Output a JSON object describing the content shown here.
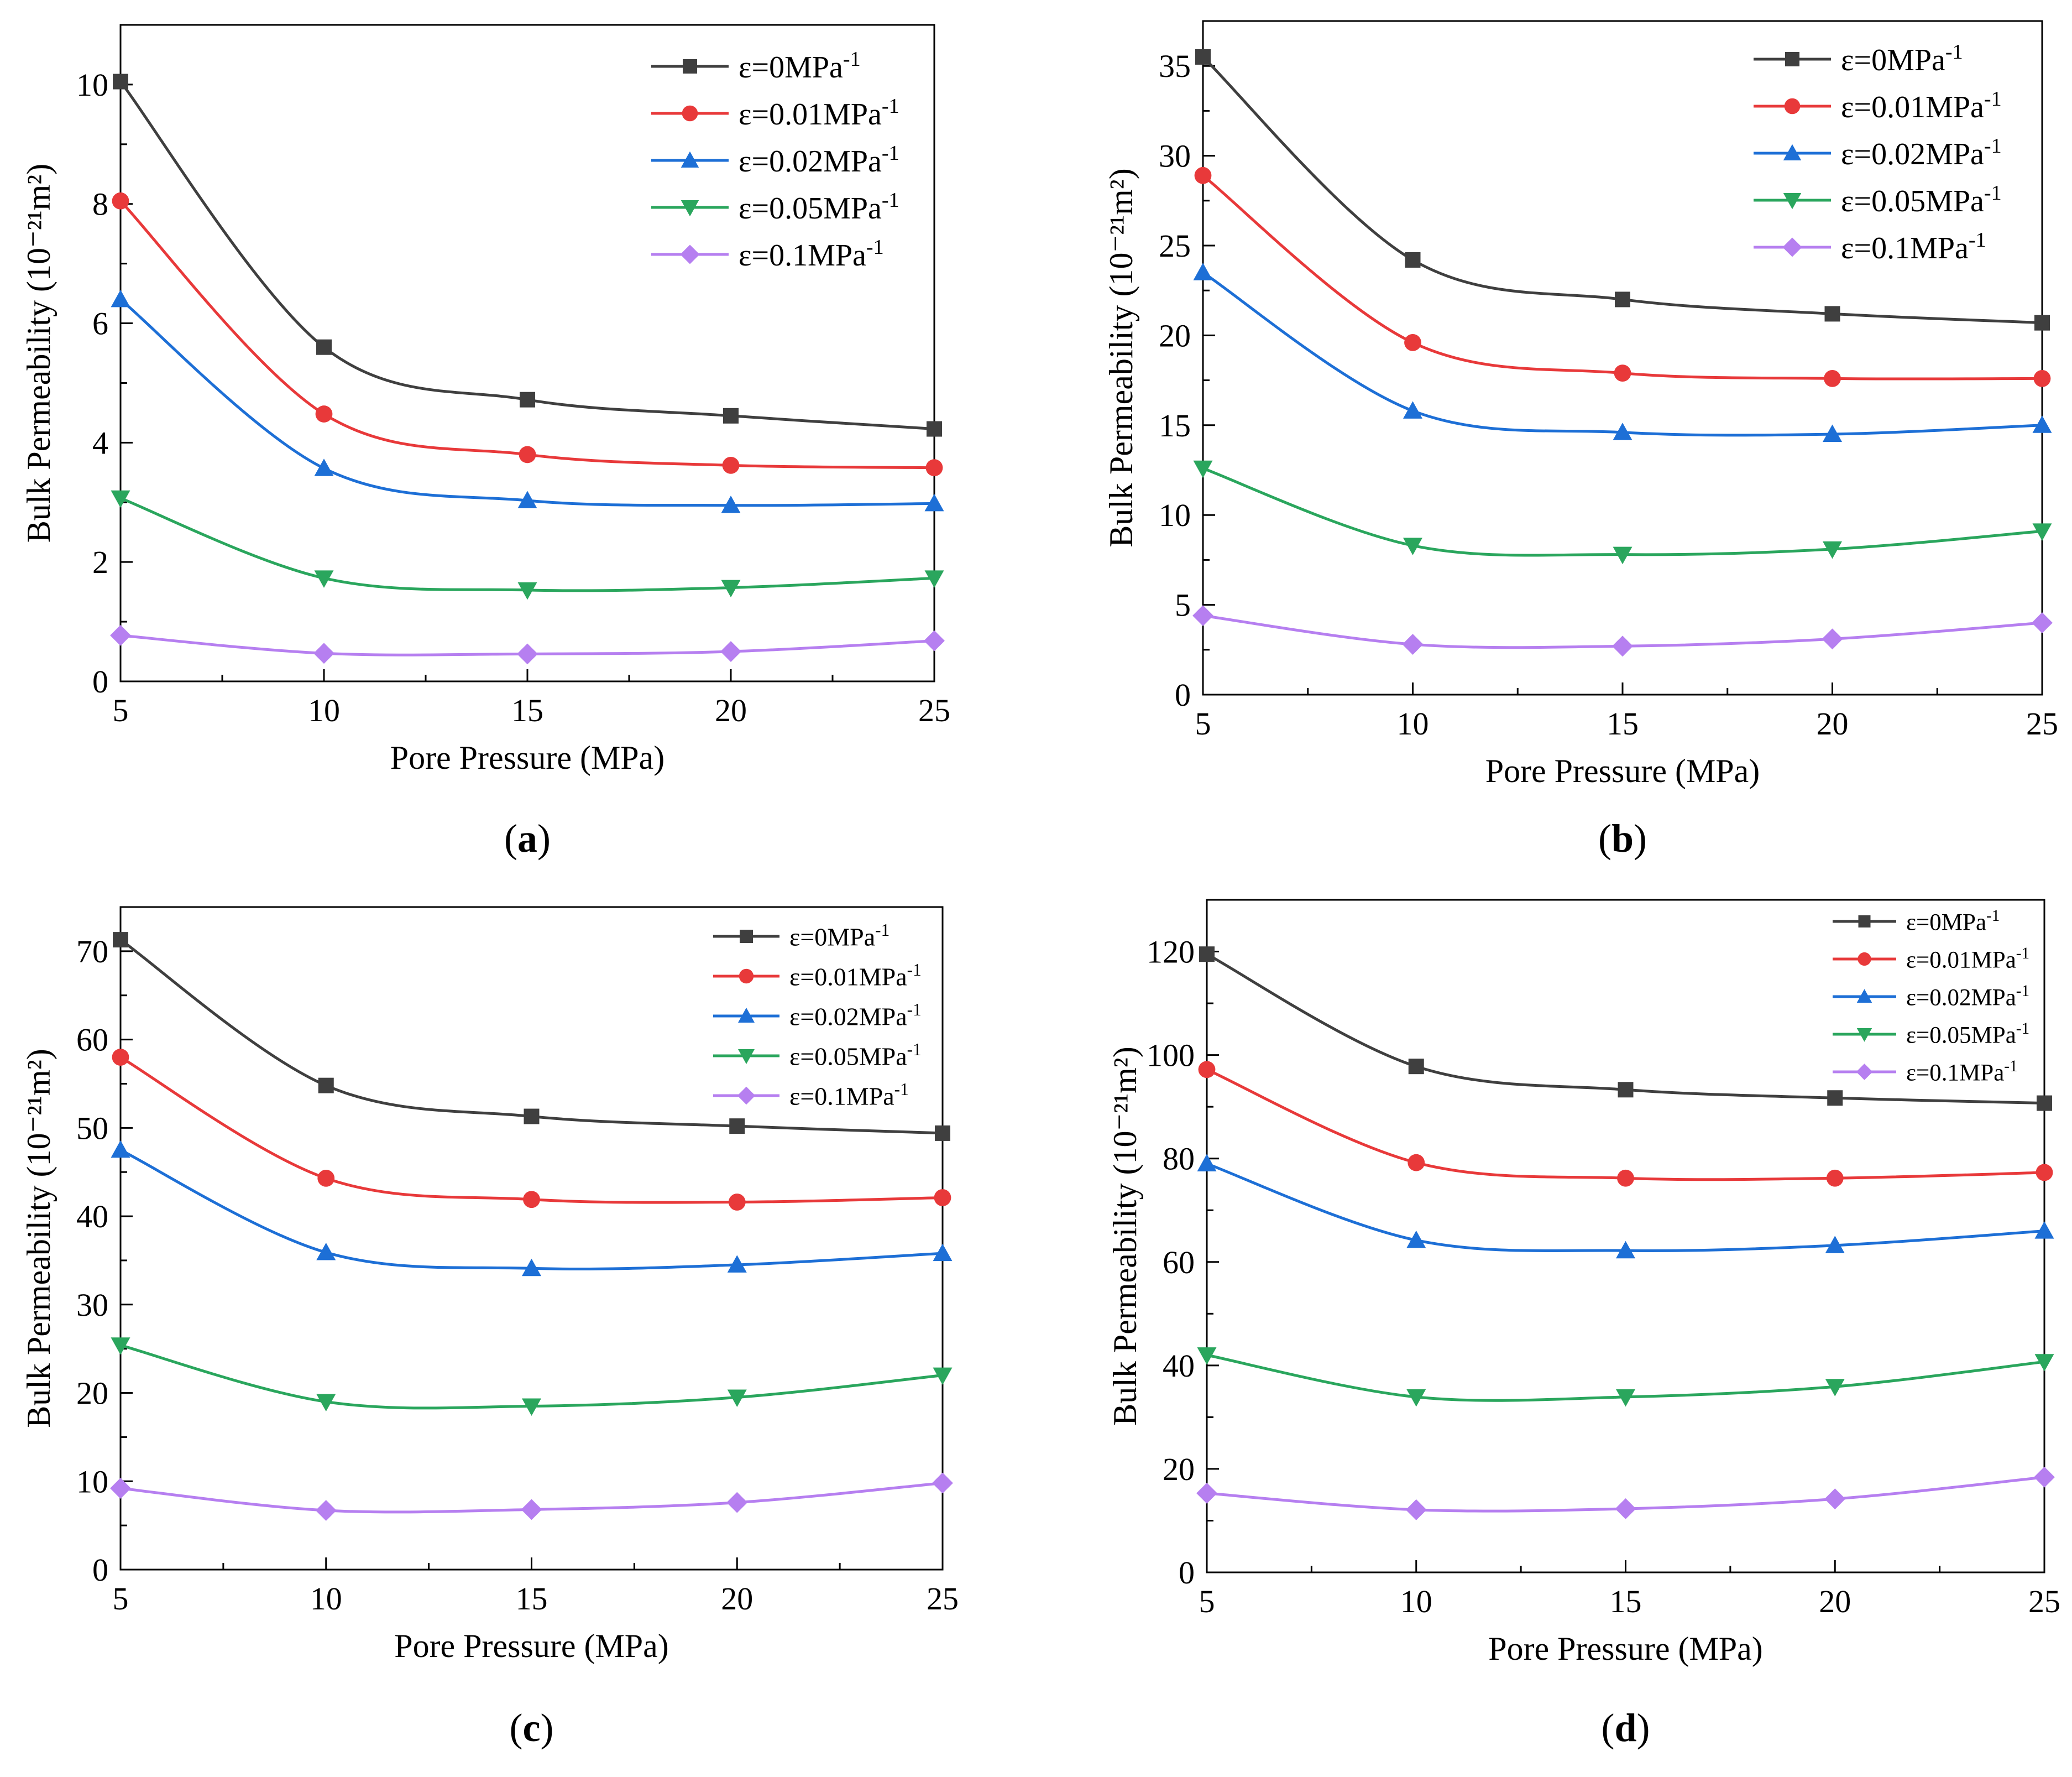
{
  "chart_data": [
    {
      "type": "line",
      "panel_label": "(a)",
      "xlabel": "Pore Pressure (MPa)",
      "ylabel": "Bulk Permeability (10⁻²¹m²)",
      "x": [
        5,
        10,
        15,
        20,
        25
      ],
      "xlim": [
        5,
        25
      ],
      "xticks": [
        5,
        10,
        15,
        20,
        25
      ],
      "ylim": [
        0,
        11
      ],
      "yticks": [
        0,
        2,
        4,
        6,
        8,
        10
      ],
      "legend_position": "top-right",
      "series": [
        {
          "name": "ε=0MPa",
          "superscript": "-1",
          "marker": "square",
          "color": "#3f3f3f",
          "values": [
            10.05,
            5.6,
            4.72,
            4.45,
            4.23
          ]
        },
        {
          "name": "ε=0.01MPa",
          "superscript": "-1",
          "marker": "circle",
          "color": "#e8393a",
          "values": [
            8.05,
            4.48,
            3.8,
            3.62,
            3.58
          ]
        },
        {
          "name": "ε=0.02MPa",
          "superscript": "-1",
          "marker": "triangle-up",
          "color": "#1d6fd6",
          "values": [
            6.4,
            3.57,
            3.03,
            2.95,
            2.98
          ]
        },
        {
          "name": "ε=0.05MPa",
          "superscript": "-1",
          "marker": "triangle-down",
          "color": "#2aa65d",
          "values": [
            3.07,
            1.73,
            1.53,
            1.57,
            1.73
          ]
        },
        {
          "name": "ε=0.1MPa",
          "superscript": "-1",
          "marker": "diamond",
          "color": "#b67ff0",
          "values": [
            0.77,
            0.47,
            0.46,
            0.5,
            0.68
          ]
        }
      ]
    },
    {
      "type": "line",
      "panel_label": "(b)",
      "xlabel": "Pore Pressure (MPa)",
      "ylabel": "Bulk Permeability (10⁻²¹m²)",
      "x": [
        5,
        10,
        15,
        20,
        25
      ],
      "xlim": [
        5,
        25
      ],
      "xticks": [
        5,
        10,
        15,
        20,
        25
      ],
      "ylim": [
        0,
        37.5
      ],
      "yticks": [
        0,
        5,
        10,
        15,
        20,
        25,
        30,
        35
      ],
      "legend_position": "top-right",
      "series": [
        {
          "name": "ε=0MPa",
          "superscript": "-1",
          "marker": "square",
          "color": "#3f3f3f",
          "values": [
            35.5,
            24.2,
            22.0,
            21.2,
            20.7
          ]
        },
        {
          "name": "ε=0.01MPa",
          "superscript": "-1",
          "marker": "circle",
          "color": "#e8393a",
          "values": [
            28.9,
            19.6,
            17.9,
            17.6,
            17.6
          ]
        },
        {
          "name": "ε=0.02MPa",
          "superscript": "-1",
          "marker": "triangle-up",
          "color": "#1d6fd6",
          "values": [
            23.5,
            15.8,
            14.6,
            14.5,
            15.0
          ]
        },
        {
          "name": "ε=0.05MPa",
          "superscript": "-1",
          "marker": "triangle-down",
          "color": "#2aa65d",
          "values": [
            12.6,
            8.3,
            7.8,
            8.1,
            9.1
          ]
        },
        {
          "name": "ε=0.1MPa",
          "superscript": "-1",
          "marker": "diamond",
          "color": "#b67ff0",
          "values": [
            4.4,
            2.8,
            2.7,
            3.1,
            4.0
          ]
        }
      ]
    },
    {
      "type": "line",
      "panel_label": "(c)",
      "xlabel": "Pore Pressure (MPa)",
      "ylabel": "Bulk Permeability (10⁻²¹m²)",
      "x": [
        5,
        10,
        15,
        20,
        25
      ],
      "xlim": [
        5,
        25
      ],
      "xticks": [
        5,
        10,
        15,
        20,
        25
      ],
      "ylim": [
        0,
        75
      ],
      "yticks": [
        0,
        10,
        20,
        30,
        40,
        50,
        60,
        70
      ],
      "legend_position": "top-right",
      "series": [
        {
          "name": "ε=0MPa",
          "superscript": "-1",
          "marker": "square",
          "color": "#3f3f3f",
          "values": [
            71.3,
            54.8,
            51.3,
            50.2,
            49.4
          ]
        },
        {
          "name": "ε=0.01MPa",
          "superscript": "-1",
          "marker": "circle",
          "color": "#e8393a",
          "values": [
            58.0,
            44.3,
            41.9,
            41.6,
            42.1
          ]
        },
        {
          "name": "ε=0.02MPa",
          "superscript": "-1",
          "marker": "triangle-up",
          "color": "#1d6fd6",
          "values": [
            47.5,
            35.9,
            34.1,
            34.5,
            35.8
          ]
        },
        {
          "name": "ε=0.05MPa",
          "superscript": "-1",
          "marker": "triangle-down",
          "color": "#2aa65d",
          "values": [
            25.4,
            19.0,
            18.5,
            19.5,
            22.0
          ]
        },
        {
          "name": "ε=0.1MPa",
          "superscript": "-1",
          "marker": "diamond",
          "color": "#b67ff0",
          "values": [
            9.2,
            6.7,
            6.8,
            7.6,
            9.8
          ]
        }
      ]
    },
    {
      "type": "line",
      "panel_label": "(d)",
      "xlabel": "Pore Pressure (MPa)",
      "ylabel": "Bulk Permeability (10⁻²¹m²)",
      "x": [
        5,
        10,
        15,
        20,
        25
      ],
      "xlim": [
        5,
        25
      ],
      "xticks": [
        5,
        10,
        15,
        20,
        25
      ],
      "ylim": [
        0,
        130
      ],
      "yticks": [
        0,
        20,
        40,
        60,
        80,
        100,
        120
      ],
      "legend_position": "top-right",
      "series": [
        {
          "name": "ε=0MPa",
          "superscript": "-1",
          "marker": "square",
          "color": "#3f3f3f",
          "values": [
            119.5,
            97.8,
            93.3,
            91.7,
            90.7
          ]
        },
        {
          "name": "ε=0.01MPa",
          "superscript": "-1",
          "marker": "circle",
          "color": "#e8393a",
          "values": [
            97.2,
            79.2,
            76.2,
            76.2,
            77.3
          ]
        },
        {
          "name": "ε=0.02MPa",
          "superscript": "-1",
          "marker": "triangle-up",
          "color": "#1d6fd6",
          "values": [
            79.0,
            64.2,
            62.2,
            63.2,
            66.0
          ]
        },
        {
          "name": "ε=0.05MPa",
          "superscript": "-1",
          "marker": "triangle-down",
          "color": "#2aa65d",
          "values": [
            42.0,
            33.9,
            33.9,
            35.9,
            40.7
          ]
        },
        {
          "name": "ε=0.1MPa",
          "superscript": "-1",
          "marker": "diamond",
          "color": "#b67ff0",
          "values": [
            15.3,
            12.1,
            12.3,
            14.2,
            18.4
          ]
        }
      ]
    }
  ]
}
